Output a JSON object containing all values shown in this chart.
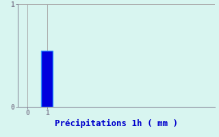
{
  "categories": [
    1
  ],
  "values": [
    0.55
  ],
  "bar_color": "#0000dd",
  "bar_edge_color": "#3399ff",
  "background_color": "#d8f5f0",
  "plot_bg_color": "#d8f5f0",
  "xlabel": "Précipitations 1h ( mm )",
  "xlabel_color": "#0000cc",
  "xlabel_fontsize": 9,
  "axis_color": "#888899",
  "tick_color": "#0000cc",
  "ylim": [
    0,
    1.0
  ],
  "xlim": [
    -0.5,
    9.5
  ],
  "yticks": [
    0,
    1
  ],
  "xticks": [
    0,
    1
  ],
  "grid_color": "#aaaaaa",
  "bar_width": 0.6
}
